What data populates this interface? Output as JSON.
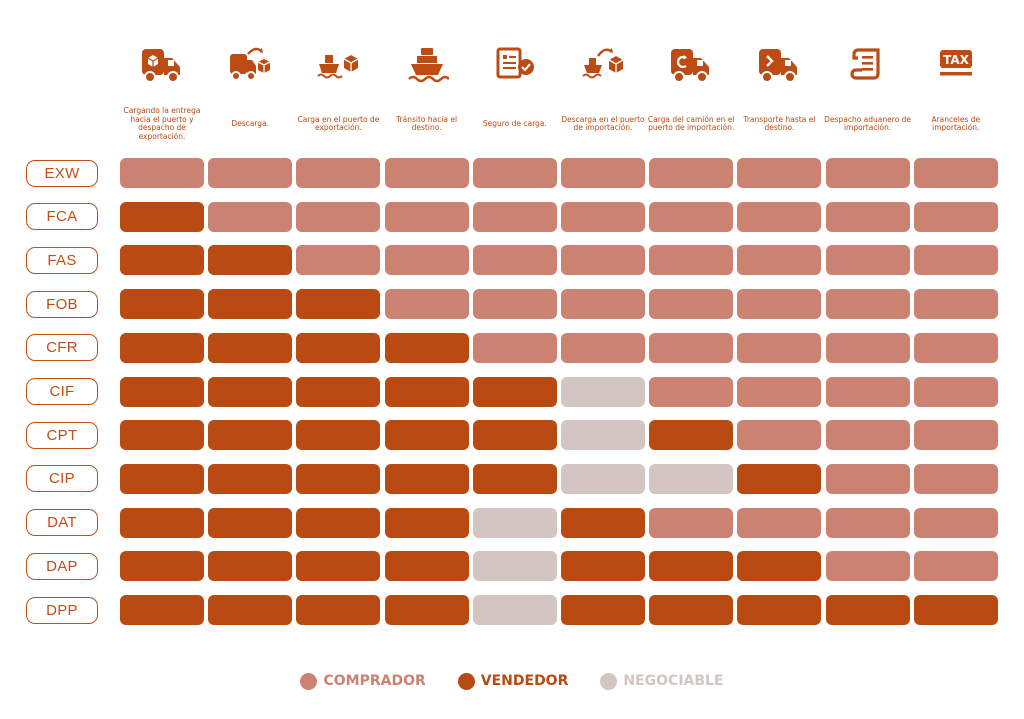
{
  "colors": {
    "accent": "#bf4f16",
    "comprador": "#cb8272",
    "vendedor": "#b94a12",
    "negociable": "#d2c5c2",
    "icon": "#bd4c14"
  },
  "chart_data": {
    "type": "table",
    "columns": [
      {
        "label": "Cargando la entrega hacia el puerto y despacho de exportación.",
        "icon": "truck-box-icon"
      },
      {
        "label": "Descarga.",
        "icon": "truck-unload-icon"
      },
      {
        "label": "Carga en el puerto de exportación.",
        "icon": "ship-box-icon"
      },
      {
        "label": "Tránsito hacia el destino.",
        "icon": "ship-icon"
      },
      {
        "label": "Seguro de carga.",
        "icon": "document-check-icon"
      },
      {
        "label": "Descarga en el puerto de importación.",
        "icon": "ship-unload-icon"
      },
      {
        "label": "Carga del camión en el puerto de importación.",
        "icon": "truck-reload-icon"
      },
      {
        "label": "Transporte hasta el destino.",
        "icon": "truck-arrow-icon"
      },
      {
        "label": "Despacho aduanero de importación.",
        "icon": "scroll-icon"
      },
      {
        "label": "Aranceles de importación.",
        "icon": "tax-icon"
      }
    ],
    "rows": [
      {
        "label": "EXW",
        "cells": [
          "comprador",
          "comprador",
          "comprador",
          "comprador",
          "comprador",
          "comprador",
          "comprador",
          "comprador",
          "comprador",
          "comprador"
        ]
      },
      {
        "label": "FCA",
        "cells": [
          "vendedor",
          "comprador",
          "comprador",
          "comprador",
          "comprador",
          "comprador",
          "comprador",
          "comprador",
          "comprador",
          "comprador"
        ]
      },
      {
        "label": "FAS",
        "cells": [
          "vendedor",
          "vendedor",
          "comprador",
          "comprador",
          "comprador",
          "comprador",
          "comprador",
          "comprador",
          "comprador",
          "comprador"
        ]
      },
      {
        "label": "FOB",
        "cells": [
          "vendedor",
          "vendedor",
          "vendedor",
          "comprador",
          "comprador",
          "comprador",
          "comprador",
          "comprador",
          "comprador",
          "comprador"
        ]
      },
      {
        "label": "CFR",
        "cells": [
          "vendedor",
          "vendedor",
          "vendedor",
          "vendedor",
          "comprador",
          "comprador",
          "comprador",
          "comprador",
          "comprador",
          "comprador"
        ]
      },
      {
        "label": "CIF",
        "cells": [
          "vendedor",
          "vendedor",
          "vendedor",
          "vendedor",
          "vendedor",
          "negociable",
          "comprador",
          "comprador",
          "comprador",
          "comprador"
        ]
      },
      {
        "label": "CPT",
        "cells": [
          "vendedor",
          "vendedor",
          "vendedor",
          "vendedor",
          "vendedor",
          "negociable",
          "vendedor",
          "comprador",
          "comprador",
          "comprador"
        ]
      },
      {
        "label": "CIP",
        "cells": [
          "vendedor",
          "vendedor",
          "vendedor",
          "vendedor",
          "vendedor",
          "negociable",
          "negociable",
          "vendedor",
          "comprador",
          "comprador"
        ]
      },
      {
        "label": "DAT",
        "cells": [
          "vendedor",
          "vendedor",
          "vendedor",
          "vendedor",
          "negociable",
          "vendedor",
          "comprador",
          "comprador",
          "comprador",
          "comprador"
        ]
      },
      {
        "label": "DAP",
        "cells": [
          "vendedor",
          "vendedor",
          "vendedor",
          "vendedor",
          "negociable",
          "vendedor",
          "vendedor",
          "vendedor",
          "comprador",
          "comprador"
        ]
      },
      {
        "label": "DPP",
        "cells": [
          "vendedor",
          "vendedor",
          "vendedor",
          "vendedor",
          "negociable",
          "vendedor",
          "vendedor",
          "vendedor",
          "vendedor",
          "vendedor"
        ]
      }
    ],
    "legend": [
      {
        "key": "comprador",
        "label": "COMPRADOR"
      },
      {
        "key": "vendedor",
        "label": "VENDEDOR"
      },
      {
        "key": "negociable",
        "label": "NEGOCIABLE"
      }
    ]
  }
}
